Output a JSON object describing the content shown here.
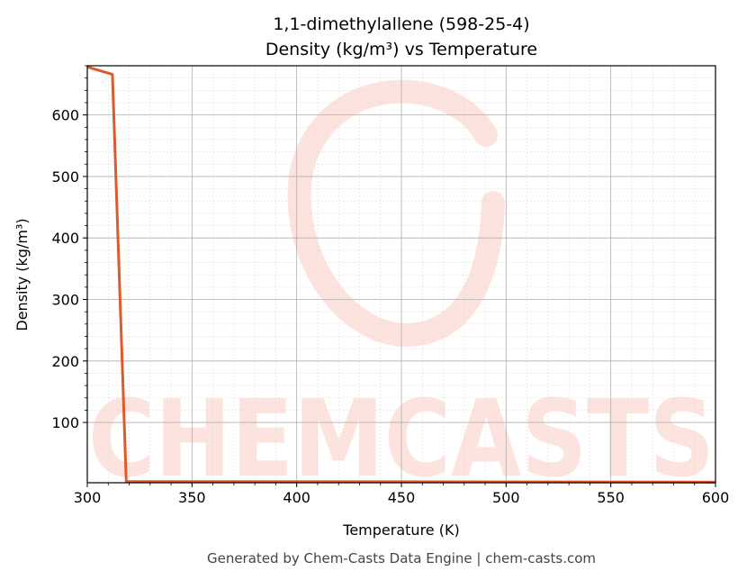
{
  "chart_data": {
    "type": "line",
    "title": "1,1-dimethylallene (598-25-4)",
    "subtitle": "Density (kg/m³) vs Temperature",
    "x_label": "Temperature (K)",
    "y_label": "Density (kg/m³)",
    "watermark": "CHEMCASTS",
    "footer": "Generated by Chem-Casts Data Engine | chem-casts.com",
    "x": [
      300,
      312,
      318.6,
      600
    ],
    "series": [
      {
        "name": "Density",
        "color": "#dc5a2c",
        "values": [
          678,
          666,
          4,
          3
        ]
      }
    ],
    "xlim": [
      300,
      600
    ],
    "xticks": [
      300,
      350,
      400,
      450,
      500,
      550,
      600
    ],
    "ylim": [
      2,
      680
    ],
    "yticks": [
      100,
      200,
      300,
      400,
      500,
      600
    ],
    "grid": true,
    "minor_grid": true
  }
}
